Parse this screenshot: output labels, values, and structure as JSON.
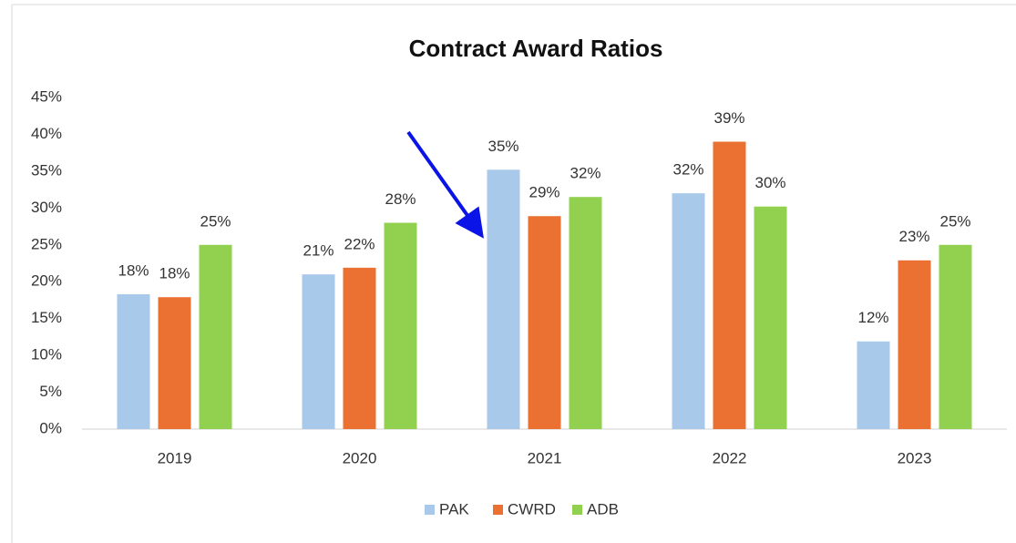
{
  "chart_data": {
    "type": "bar",
    "title": "Contract Award Ratios",
    "categories": [
      "2019",
      "2020",
      "2021",
      "2022",
      "2023"
    ],
    "series": [
      {
        "name": "PAK",
        "color": "#a9c9eb",
        "values": [
          18.3,
          21,
          35.2,
          32,
          11.9
        ],
        "value_labels": [
          "18%",
          "21%",
          "35%",
          "32%",
          "12%"
        ]
      },
      {
        "name": "CWRD",
        "color": "#ea7132",
        "values": [
          17.9,
          21.9,
          28.9,
          39,
          22.9
        ],
        "value_labels": [
          "18%",
          "22%",
          "29%",
          "39%",
          "23%"
        ]
      },
      {
        "name": "ADB",
        "color": "#92d050",
        "values": [
          25,
          28,
          31.5,
          30.2,
          25
        ],
        "value_labels": [
          "25%",
          "28%",
          "32%",
          "30%",
          "25%"
        ]
      }
    ],
    "ylim": [
      0,
      45
    ],
    "yticks": [
      {
        "value": 0,
        "label": "0%"
      },
      {
        "value": 5,
        "label": "5%"
      },
      {
        "value": 10,
        "label": "10%"
      },
      {
        "value": 15,
        "label": "15%"
      },
      {
        "value": 20,
        "label": "20%"
      },
      {
        "value": 25,
        "label": "25%"
      },
      {
        "value": 30,
        "label": "30%"
      },
      {
        "value": 35,
        "label": "35%"
      },
      {
        "value": 40,
        "label": "40%"
      },
      {
        "value": 45,
        "label": "45%"
      }
    ],
    "grid": false
  }
}
